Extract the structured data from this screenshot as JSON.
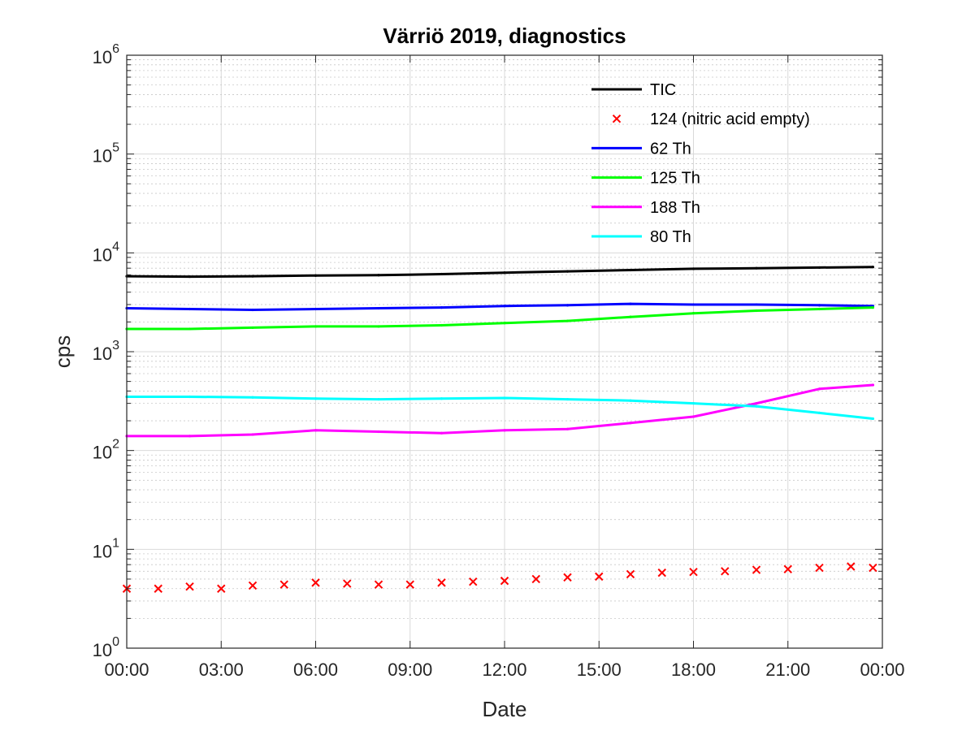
{
  "chart_data": {
    "type": "line",
    "title": "Värriö 2019, diagnostics",
    "xlabel": "Date",
    "ylabel": "cps",
    "xlim": [
      0,
      24
    ],
    "ylim": [
      1,
      1000000
    ],
    "yscale": "log",
    "grid": "on (major and minor)",
    "legend_position": "top-right (inside)",
    "x_tick_labels": [
      "00:00",
      "03:00",
      "06:00",
      "09:00",
      "12:00",
      "15:00",
      "18:00",
      "21:00",
      "00:00"
    ],
    "y_tick_labels": [
      {
        "base": "10",
        "exp": "0"
      },
      {
        "base": "10",
        "exp": "1"
      },
      {
        "base": "10",
        "exp": "2"
      },
      {
        "base": "10",
        "exp": "3"
      },
      {
        "base": "10",
        "exp": "4"
      },
      {
        "base": "10",
        "exp": "5"
      },
      {
        "base": "10",
        "exp": "6"
      }
    ],
    "series": [
      {
        "name": "TIC",
        "color": "#000000",
        "style": "line",
        "x": [
          0,
          2,
          4,
          6,
          8,
          10,
          12,
          14,
          16,
          18,
          20,
          22,
          23.7
        ],
        "y": [
          5800,
          5750,
          5800,
          5900,
          5950,
          6100,
          6300,
          6500,
          6700,
          6900,
          7000,
          7100,
          7200
        ]
      },
      {
        "name": "124 (nitric acid empty)",
        "color": "#ff0000",
        "style": "marker-x",
        "x": [
          0,
          1,
          2,
          3,
          4,
          5,
          6,
          7,
          8,
          9,
          10,
          11,
          12,
          13,
          14,
          15,
          16,
          17,
          18,
          19,
          20,
          21,
          22,
          23,
          23.7
        ],
        "y": [
          4.0,
          4.0,
          4.2,
          4.0,
          4.3,
          4.4,
          4.6,
          4.5,
          4.4,
          4.4,
          4.6,
          4.7,
          4.8,
          5.0,
          5.2,
          5.3,
          5.6,
          5.8,
          5.9,
          6.0,
          6.2,
          6.3,
          6.5,
          6.7,
          6.5
        ]
      },
      {
        "name": "62 Th",
        "color": "#0000ff",
        "style": "line",
        "x": [
          0,
          2,
          4,
          6,
          8,
          10,
          12,
          14,
          16,
          18,
          20,
          22,
          23.7
        ],
        "y": [
          2750,
          2700,
          2650,
          2700,
          2750,
          2800,
          2900,
          2950,
          3050,
          3000,
          3000,
          2950,
          2900
        ]
      },
      {
        "name": "125 Th",
        "color": "#00ff00",
        "style": "line",
        "x": [
          0,
          2,
          4,
          6,
          8,
          10,
          12,
          14,
          16,
          18,
          20,
          22,
          23.7
        ],
        "y": [
          1700,
          1700,
          1750,
          1800,
          1800,
          1850,
          1950,
          2050,
          2250,
          2450,
          2600,
          2700,
          2800
        ]
      },
      {
        "name": "188 Th",
        "color": "#ff00ff",
        "style": "line",
        "x": [
          0,
          2,
          4,
          6,
          8,
          10,
          12,
          14,
          16,
          18,
          20,
          22,
          23.7
        ],
        "y": [
          140,
          140,
          145,
          160,
          155,
          150,
          160,
          165,
          190,
          220,
          300,
          420,
          460
        ]
      },
      {
        "name": "80 Th",
        "color": "#00ffff",
        "style": "line",
        "x": [
          0,
          2,
          4,
          6,
          8,
          10,
          12,
          14,
          16,
          18,
          20,
          22,
          23.7
        ],
        "y": [
          350,
          350,
          345,
          335,
          330,
          335,
          340,
          330,
          320,
          300,
          280,
          240,
          210
        ]
      }
    ]
  }
}
